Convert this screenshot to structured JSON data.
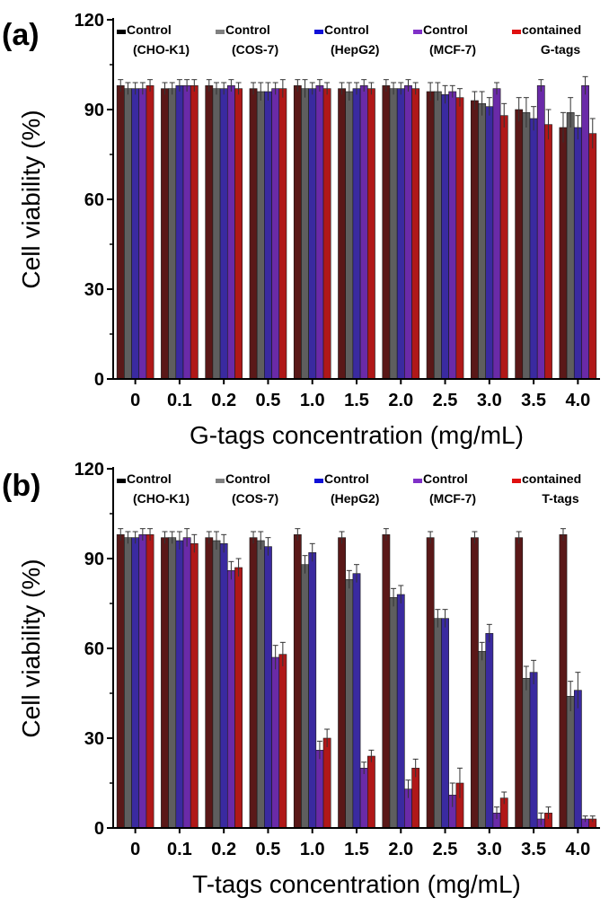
{
  "figure": {
    "legend": [
      {
        "name": "Control",
        "sub": "(CHO-K1)",
        "color": "#000000"
      },
      {
        "name": "Control",
        "sub": "(COS-7)",
        "color": "#808080"
      },
      {
        "name": "Control",
        "sub": "(HepG2)",
        "color": "#1010d8"
      },
      {
        "name": "Control",
        "sub": "(MCF-7)",
        "color": "#8030c8"
      },
      {
        "name": "contained",
        "sub": "",
        "color": "#e01010"
      }
    ],
    "bar_colors": [
      "#5a1818",
      "#5e5e5e",
      "#3a2aa0",
      "#6a2aa8",
      "#b01818"
    ]
  },
  "chart_data": [
    {
      "type": "bar",
      "panel": "(a)",
      "title": "",
      "xlabel": "G-tags concentration (mg/mL)",
      "ylabel": "Cell viability (%)",
      "ylim": [
        0,
        120
      ],
      "yticks": [
        0,
        30,
        60,
        90,
        120
      ],
      "categories": [
        "0",
        "0.1",
        "0.2",
        "0.5",
        "1.0",
        "1.5",
        "2.0",
        "2.5",
        "3.0",
        "3.5",
        "4.0"
      ],
      "legend_tag": "G-tags",
      "series": [
        {
          "name": "CHO-K1",
          "values": [
            98,
            97,
            98,
            97,
            98,
            97,
            98,
            96,
            93,
            90,
            84
          ],
          "errors": [
            2,
            2,
            2,
            2,
            2,
            2,
            2,
            3,
            3,
            4,
            5
          ]
        },
        {
          "name": "COS-7",
          "values": [
            97,
            97,
            97,
            96,
            97,
            96,
            97,
            96,
            92,
            89,
            89
          ],
          "errors": [
            2,
            2,
            2,
            3,
            3,
            3,
            2,
            3,
            4,
            5,
            5
          ]
        },
        {
          "name": "HepG2",
          "values": [
            97,
            98,
            97,
            96,
            97,
            97,
            97,
            95,
            91,
            87,
            84
          ],
          "errors": [
            2,
            2,
            2,
            3,
            2,
            2,
            2,
            3,
            3,
            4,
            4
          ]
        },
        {
          "name": "MCF-7",
          "values": [
            97,
            98,
            98,
            97,
            98,
            98,
            98,
            96,
            97,
            98,
            98
          ],
          "errors": [
            2,
            2,
            2,
            2,
            2,
            2,
            2,
            2,
            2,
            2,
            3
          ]
        },
        {
          "name": "G-tags",
          "values": [
            98,
            98,
            97,
            97,
            97,
            97,
            97,
            94,
            88,
            85,
            82
          ],
          "errors": [
            2,
            2,
            2,
            3,
            2,
            2,
            2,
            3,
            4,
            5,
            5
          ]
        }
      ]
    },
    {
      "type": "bar",
      "panel": "(b)",
      "title": "",
      "xlabel": "T-tags concentration (mg/mL)",
      "ylabel": "Cell viability (%)",
      "ylim": [
        0,
        120
      ],
      "yticks": [
        0,
        30,
        60,
        90,
        120
      ],
      "categories": [
        "0",
        "0.1",
        "0.2",
        "0.5",
        "1.0",
        "1.5",
        "2.0",
        "2.5",
        "3.0",
        "3.5",
        "4.0"
      ],
      "legend_tag": "T-tags",
      "series": [
        {
          "name": "CHO-K1",
          "values": [
            98,
            97,
            97,
            97,
            98,
            97,
            98,
            97,
            97,
            97,
            98
          ],
          "errors": [
            2,
            2,
            2,
            2,
            2,
            2,
            2,
            2,
            2,
            2,
            2
          ]
        },
        {
          "name": "COS-7",
          "values": [
            97,
            97,
            96,
            96,
            88,
            83,
            77,
            70,
            59,
            50,
            44
          ],
          "errors": [
            2,
            2,
            3,
            3,
            3,
            3,
            3,
            3,
            3,
            4,
            5
          ]
        },
        {
          "name": "HepG2",
          "values": [
            97,
            96,
            95,
            94,
            92,
            85,
            78,
            70,
            65,
            52,
            46
          ],
          "errors": [
            2,
            3,
            3,
            3,
            3,
            3,
            3,
            3,
            3,
            4,
            6
          ]
        },
        {
          "name": "MCF-7",
          "values": [
            98,
            97,
            86,
            57,
            26,
            20,
            13,
            11,
            5,
            3,
            3
          ],
          "errors": [
            2,
            3,
            3,
            4,
            3,
            2,
            3,
            4,
            2,
            2,
            1
          ]
        },
        {
          "name": "T-tags",
          "values": [
            98,
            95,
            87,
            58,
            30,
            24,
            20,
            15,
            10,
            5,
            3
          ],
          "errors": [
            2,
            3,
            3,
            4,
            3,
            2,
            3,
            5,
            2,
            2,
            1
          ]
        }
      ]
    }
  ]
}
